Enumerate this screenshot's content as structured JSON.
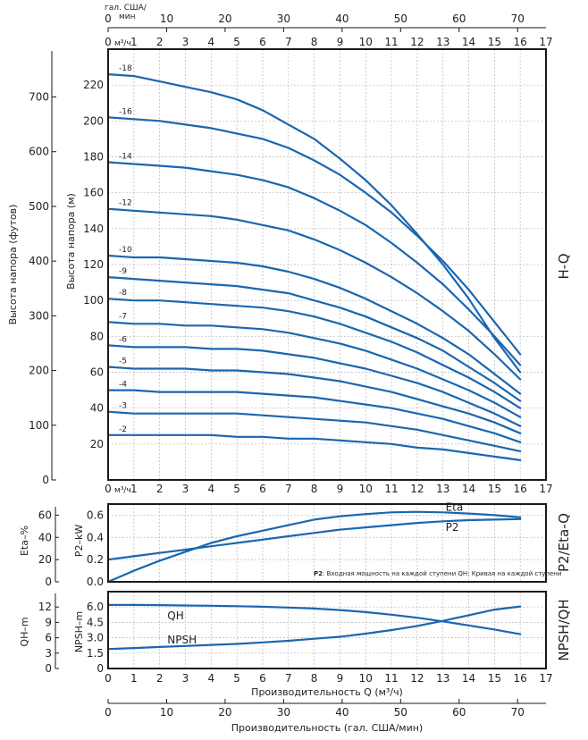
{
  "chart_data": [
    {
      "type": "line",
      "panel": "H-Q",
      "side_label": "H-Q",
      "ylabel_left": "Высота напора (футов)",
      "ylabel_inner": "Высота напора (м)",
      "top_axis_label_line1": "гал. США/",
      "top_axis_label_line2": "мин",
      "top_unit": "м³/ч",
      "x_unit_label": "м³/ч",
      "xlim": [
        0,
        17
      ],
      "ylim": [
        0,
        240
      ],
      "x_ticks": [
        0,
        1,
        2,
        3,
        4,
        5,
        6,
        7,
        8,
        9,
        10,
        11,
        12,
        13,
        14,
        15,
        16,
        17
      ],
      "y_ticks": [
        20,
        40,
        60,
        80,
        100,
        120,
        140,
        160,
        180,
        200,
        220
      ],
      "feet_ticks": [
        0,
        100,
        200,
        300,
        400,
        500,
        600,
        700
      ],
      "gpm_ticks": [
        0,
        10,
        20,
        30,
        40,
        50,
        60,
        70
      ],
      "grid": true,
      "series": [
        {
          "name": "-18",
          "x": [
            0,
            1,
            2,
            3,
            4,
            5,
            6,
            7,
            8,
            9,
            10,
            11,
            12,
            13,
            14,
            15,
            16
          ],
          "y": [
            226,
            225,
            222,
            219,
            216,
            212,
            206,
            198,
            190,
            179,
            167,
            153,
            137,
            120,
            101,
            79,
            60
          ]
        },
        {
          "name": "-16",
          "x": [
            0,
            1,
            2,
            3,
            4,
            5,
            6,
            7,
            8,
            9,
            10,
            11,
            12,
            13,
            14,
            15,
            16
          ],
          "y": [
            202,
            201,
            200,
            198,
            196,
            193,
            190,
            185,
            178,
            170,
            160,
            149,
            136,
            122,
            106,
            88,
            70
          ]
        },
        {
          "name": "-14",
          "x": [
            0,
            1,
            2,
            3,
            4,
            5,
            6,
            7,
            8,
            9,
            10,
            11,
            12,
            13,
            14,
            15,
            16
          ],
          "y": [
            177,
            176,
            175,
            174,
            172,
            170,
            167,
            163,
            157,
            150,
            142,
            132,
            121,
            109,
            95,
            80,
            64
          ]
        },
        {
          "name": "-12",
          "x": [
            0,
            1,
            2,
            3,
            4,
            5,
            6,
            7,
            8,
            9,
            10,
            11,
            12,
            13,
            14,
            15,
            16
          ],
          "y": [
            151,
            150,
            149,
            148,
            147,
            145,
            142,
            139,
            134,
            128,
            121,
            113,
            104,
            94,
            83,
            70,
            56
          ]
        },
        {
          "name": "-10",
          "x": [
            0,
            1,
            2,
            3,
            4,
            5,
            6,
            7,
            8,
            9,
            10,
            11,
            12,
            13,
            14,
            15,
            16
          ],
          "y": [
            125,
            124,
            124,
            123,
            122,
            121,
            119,
            116,
            112,
            107,
            101,
            94,
            87,
            79,
            70,
            59,
            48
          ]
        },
        {
          "name": "-9",
          "x": [
            0,
            1,
            2,
            3,
            4,
            5,
            6,
            7,
            8,
            9,
            10,
            11,
            12,
            13,
            14,
            15,
            16
          ],
          "y": [
            113,
            112,
            111,
            110,
            109,
            108,
            106,
            104,
            100,
            96,
            91,
            85,
            79,
            72,
            63,
            54,
            44
          ]
        },
        {
          "name": "-8",
          "x": [
            0,
            1,
            2,
            3,
            4,
            5,
            6,
            7,
            8,
            9,
            10,
            11,
            12,
            13,
            14,
            15,
            16
          ],
          "y": [
            101,
            100,
            100,
            99,
            98,
            97,
            96,
            94,
            91,
            87,
            82,
            77,
            71,
            64,
            57,
            49,
            40
          ]
        },
        {
          "name": "-7",
          "x": [
            0,
            1,
            2,
            3,
            4,
            5,
            6,
            7,
            8,
            9,
            10,
            11,
            12,
            13,
            14,
            15,
            16
          ],
          "y": [
            88,
            87,
            87,
            86,
            86,
            85,
            84,
            82,
            79,
            76,
            72,
            67,
            62,
            56,
            50,
            43,
            35
          ]
        },
        {
          "name": "-6",
          "x": [
            0,
            1,
            2,
            3,
            4,
            5,
            6,
            7,
            8,
            9,
            10,
            11,
            12,
            13,
            14,
            15,
            16
          ],
          "y": [
            75,
            74,
            74,
            74,
            73,
            73,
            72,
            70,
            68,
            65,
            62,
            58,
            54,
            49,
            43,
            37,
            30
          ]
        },
        {
          "name": "-5",
          "x": [
            0,
            1,
            2,
            3,
            4,
            5,
            6,
            7,
            8,
            9,
            10,
            11,
            12,
            13,
            14,
            15,
            16
          ],
          "y": [
            63,
            62,
            62,
            62,
            61,
            61,
            60,
            59,
            57,
            55,
            52,
            49,
            45,
            41,
            37,
            32,
            26
          ]
        },
        {
          "name": "-4",
          "x": [
            0,
            1,
            2,
            3,
            4,
            5,
            6,
            7,
            8,
            9,
            10,
            11,
            12,
            13,
            14,
            15,
            16
          ],
          "y": [
            50,
            50,
            49,
            49,
            49,
            49,
            48,
            47,
            46,
            44,
            42,
            40,
            37,
            34,
            30,
            26,
            21
          ]
        },
        {
          "name": "-3",
          "x": [
            0,
            1,
            2,
            3,
            4,
            5,
            6,
            7,
            8,
            9,
            10,
            11,
            12,
            13,
            14,
            15,
            16
          ],
          "y": [
            38,
            37,
            37,
            37,
            37,
            37,
            36,
            35,
            34,
            33,
            32,
            30,
            28,
            25,
            22,
            19,
            16
          ]
        },
        {
          "name": "-2",
          "x": [
            0,
            1,
            2,
            3,
            4,
            5,
            6,
            7,
            8,
            9,
            10,
            11,
            12,
            13,
            14,
            15,
            16
          ],
          "y": [
            25,
            25,
            25,
            25,
            25,
            24,
            24,
            23,
            23,
            22,
            21,
            20,
            18,
            17,
            15,
            13,
            11
          ]
        }
      ]
    },
    {
      "type": "line",
      "panel": "P2/Eta-Q",
      "side_label": "P2/Eta-Q",
      "ylabel_left": "Eta–%",
      "ylabel_inner": "P2–kW",
      "xlim": [
        0,
        17
      ],
      "ylim": [
        0,
        0.7
      ],
      "x_ticks": [
        0,
        1,
        2,
        3,
        4,
        5,
        6,
        7,
        8,
        9,
        10,
        11,
        12,
        13,
        14,
        15,
        16,
        17
      ],
      "y_ticks": [
        0.0,
        0.2,
        0.4,
        0.6
      ],
      "y_ticks_text": [
        "0.0",
        "0.2",
        "0.4",
        "0.6"
      ],
      "eta_ticks": [
        0,
        20,
        40,
        60
      ],
      "grid": true,
      "note_bold": "P2",
      "note_text": ": Входная мощность на каждой ступени QH: Кривая на каждой ступени",
      "series": [
        {
          "name": "Eta",
          "x": [
            0,
            1,
            2,
            3,
            4,
            5,
            6,
            7,
            8,
            9,
            10,
            11,
            12,
            13,
            14,
            15,
            16
          ],
          "y": [
            0.0,
            0.1,
            0.19,
            0.27,
            0.35,
            0.41,
            0.46,
            0.51,
            0.56,
            0.59,
            0.61,
            0.625,
            0.63,
            0.625,
            0.615,
            0.6,
            0.58
          ]
        },
        {
          "name": "P2",
          "x": [
            0,
            1,
            2,
            3,
            4,
            5,
            6,
            7,
            8,
            9,
            10,
            11,
            12,
            13,
            14,
            15,
            16
          ],
          "y": [
            0.2,
            0.23,
            0.26,
            0.29,
            0.32,
            0.35,
            0.38,
            0.41,
            0.44,
            0.47,
            0.49,
            0.51,
            0.53,
            0.545,
            0.555,
            0.56,
            0.565
          ]
        }
      ]
    },
    {
      "type": "line",
      "panel": "NPSH/QH",
      "side_label": "NPSH/QH",
      "ylabel_left": "QH–m",
      "ylabel_inner": "NPSH–m",
      "xlabel": "Производительность Q (м³/ч)",
      "xlabel_bottom": "Производительность (гал. США/мин)",
      "xlim": [
        0,
        17
      ],
      "ylim": [
        0,
        7.5
      ],
      "x_ticks": [
        0,
        1,
        2,
        3,
        4,
        5,
        6,
        7,
        8,
        9,
        10,
        11,
        12,
        13,
        14,
        15,
        16,
        17
      ],
      "y_ticks": [
        0,
        1.5,
        3.0,
        4.5,
        6.0
      ],
      "y_ticks_text": [
        "0",
        "1.5",
        "3.0",
        "4.5",
        "6.0"
      ],
      "qh_ticks": [
        0,
        3,
        6,
        9,
        12
      ],
      "gpm_ticks": [
        0,
        10,
        20,
        30,
        40,
        50,
        60,
        70
      ],
      "grid": true,
      "series": [
        {
          "name": "QH",
          "x": [
            0,
            1,
            2,
            3,
            4,
            5,
            6,
            7,
            8,
            9,
            10,
            11,
            12,
            13,
            14,
            15,
            16
          ],
          "y": [
            6.2,
            6.2,
            6.18,
            6.15,
            6.12,
            6.08,
            6.03,
            5.95,
            5.85,
            5.7,
            5.5,
            5.25,
            4.95,
            4.6,
            4.2,
            3.8,
            3.35
          ]
        },
        {
          "name": "NPSH",
          "x": [
            0,
            1,
            2,
            3,
            4,
            5,
            6,
            7,
            8,
            9,
            10,
            11,
            12,
            13,
            14,
            15,
            16
          ],
          "y": [
            1.9,
            2.0,
            2.1,
            2.2,
            2.3,
            2.4,
            2.55,
            2.7,
            2.9,
            3.1,
            3.4,
            3.75,
            4.15,
            4.65,
            5.2,
            5.75,
            6.05
          ]
        }
      ]
    }
  ]
}
